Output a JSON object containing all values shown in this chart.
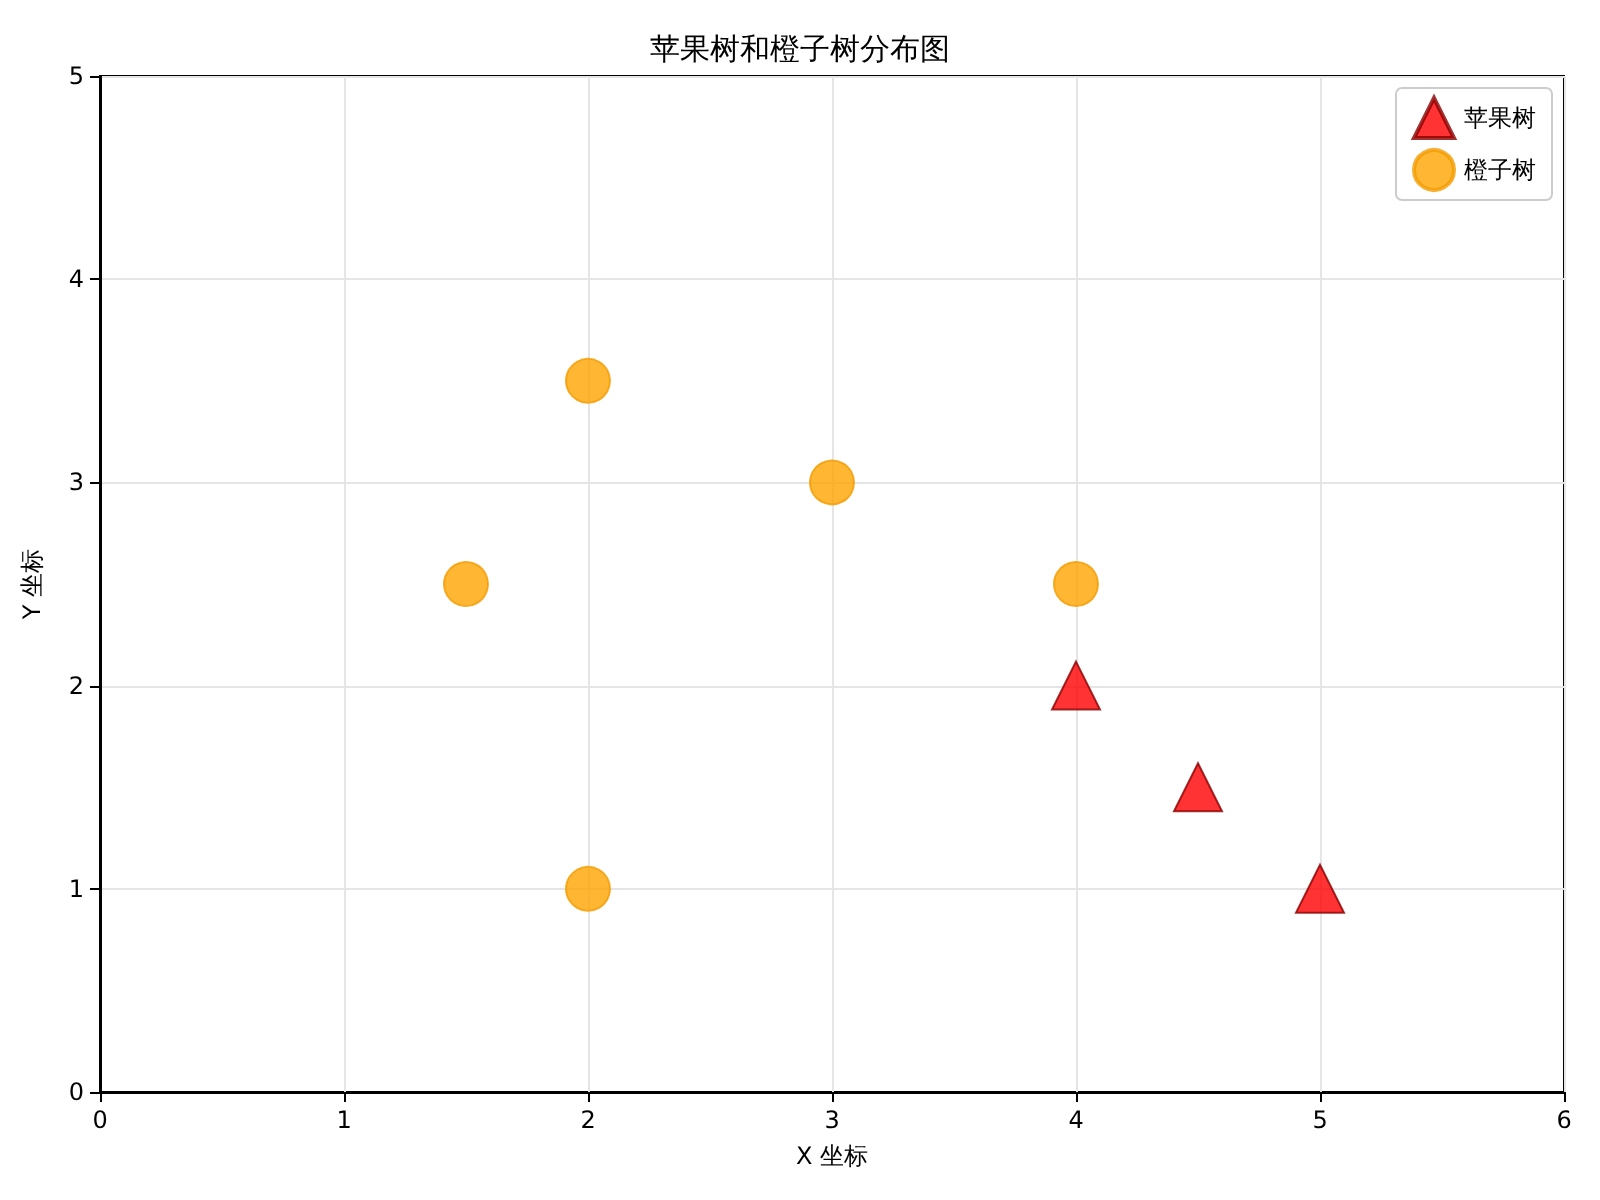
{
  "chart_data": {
    "type": "scatter",
    "title": "苹果树和橙子树分布图",
    "xlabel": "X 坐标",
    "ylabel": "Y 坐标",
    "series": [
      {
        "name": "苹果树",
        "color": "#ff0000",
        "marker": "triangle",
        "x": [
          4,
          4.5,
          5
        ],
        "values": [
          2,
          1.5,
          1
        ]
      },
      {
        "name": "橙子树",
        "color": "#ffa500",
        "marker": "circle",
        "x": [
          2,
          3,
          1.5,
          4,
          2
        ],
        "values": [
          3.5,
          3,
          2.5,
          2.5,
          1
        ]
      }
    ],
    "xlim": [
      0,
      6
    ],
    "xticks": [
      0,
      1,
      2,
      3,
      4,
      5,
      6
    ],
    "ylim": [
      0,
      5
    ],
    "yticks": [
      0,
      1,
      2,
      3,
      4,
      5
    ],
    "grid": true,
    "legend": "top right"
  }
}
